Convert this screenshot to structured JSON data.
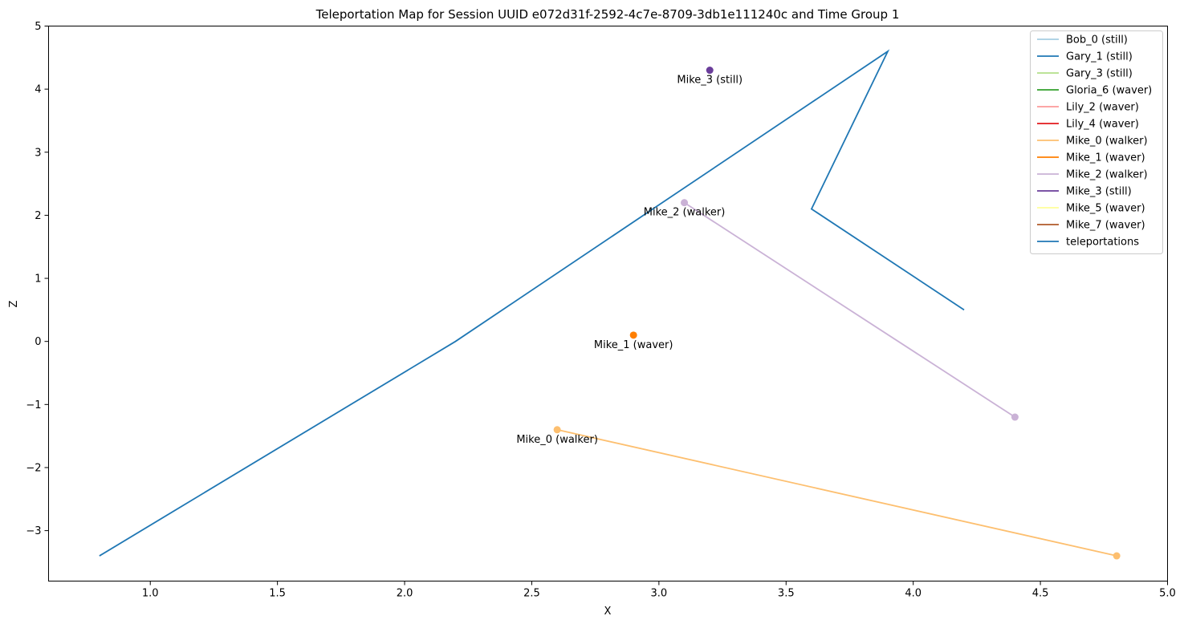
{
  "chart_data": {
    "type": "line",
    "title": "Teleportation Map for Session UUID e072d31f-2592-4c7e-8709-3db1e111240c and Time Group 1",
    "xlabel": "X",
    "ylabel": "Z",
    "xlim": [
      0.6,
      5.0
    ],
    "ylim": [
      -3.8,
      5.0
    ],
    "xticks": [
      1.0,
      1.5,
      2.0,
      2.5,
      3.0,
      3.5,
      4.0,
      4.5,
      5.0
    ],
    "xtick_labels": [
      "1.0",
      "1.5",
      "2.0",
      "2.5",
      "3.0",
      "3.5",
      "4.0",
      "4.5",
      "5.0"
    ],
    "yticks": [
      -3,
      -2,
      -1,
      0,
      1,
      2,
      3,
      4,
      5
    ],
    "ytick_labels": [
      "−3",
      "−2",
      "−1",
      "0",
      "1",
      "2",
      "3",
      "4",
      "5"
    ],
    "grid": false,
    "legend_position": "top-right",
    "series": [
      {
        "name": "Bob_0 (still)",
        "color": "#a6cee3",
        "points": []
      },
      {
        "name": "Gary_1 (still)",
        "color": "#1f78b4",
        "points": []
      },
      {
        "name": "Gary_3 (still)",
        "color": "#b2df8a",
        "points": []
      },
      {
        "name": "Gloria_6 (waver)",
        "color": "#33a02c",
        "points": []
      },
      {
        "name": "Lily_2 (waver)",
        "color": "#fb9a99",
        "points": []
      },
      {
        "name": "Lily_4 (waver)",
        "color": "#e31a1c",
        "points": []
      },
      {
        "name": "Mike_0 (walker)",
        "color": "#fdbf6f",
        "points": [
          [
            2.6,
            -1.4
          ],
          [
            4.8,
            -3.4
          ]
        ],
        "label": "Mike_0 (walker)"
      },
      {
        "name": "Mike_1 (waver)",
        "color": "#ff7f00",
        "points": [
          [
            2.9,
            0.1
          ]
        ],
        "label": "Mike_1 (waver)"
      },
      {
        "name": "Mike_2 (walker)",
        "color": "#cab2d6",
        "points": [
          [
            3.1,
            2.2
          ],
          [
            4.4,
            -1.2
          ]
        ],
        "label": "Mike_2 (walker)"
      },
      {
        "name": "Mike_3 (still)",
        "color": "#6a3d9a",
        "points": [
          [
            3.2,
            4.3
          ]
        ],
        "label": "Mike_3 (still)"
      },
      {
        "name": "Mike_5 (waver)",
        "color": "#ffff99",
        "points": []
      },
      {
        "name": "Mike_7 (waver)",
        "color": "#b15928",
        "points": []
      },
      {
        "name": "teleportations",
        "color": "#1f77b4",
        "points": [
          [
            0.8,
            -3.4
          ],
          [
            2.2,
            0.0
          ],
          [
            3.9,
            4.6
          ],
          [
            3.6,
            2.1
          ],
          [
            4.2,
            0.5
          ]
        ],
        "line_only": true
      }
    ]
  }
}
